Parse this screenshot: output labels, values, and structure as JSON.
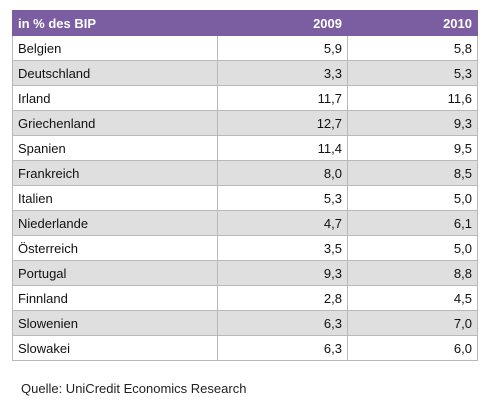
{
  "table": {
    "header": {
      "label": "in % des BIP",
      "years": [
        "2009",
        "2010"
      ]
    },
    "rows": [
      {
        "country": "Belgien",
        "y2009": "5,9",
        "y2010": "5,8"
      },
      {
        "country": "Deutschland",
        "y2009": "3,3",
        "y2010": "5,3"
      },
      {
        "country": "Irland",
        "y2009": "11,7",
        "y2010": "11,6"
      },
      {
        "country": "Griechenland",
        "y2009": "12,7",
        "y2010": "9,3"
      },
      {
        "country": "Spanien",
        "y2009": "11,4",
        "y2010": "9,5"
      },
      {
        "country": "Frankreich",
        "y2009": "8,0",
        "y2010": "8,5"
      },
      {
        "country": "Italien",
        "y2009": "5,3",
        "y2010": "5,0"
      },
      {
        "country": "Niederlande",
        "y2009": "4,7",
        "y2010": "6,1"
      },
      {
        "country": "Österreich",
        "y2009": "3,5",
        "y2010": "5,0"
      },
      {
        "country": "Portugal",
        "y2009": "9,3",
        "y2010": "8,8"
      },
      {
        "country": "Finnland",
        "y2009": "2,8",
        "y2010": "4,5"
      },
      {
        "country": "Slowenien",
        "y2009": "6,3",
        "y2010": "7,0"
      },
      {
        "country": "Slowakei",
        "y2009": "6,3",
        "y2010": "6,0"
      }
    ],
    "header_color": "#7b5ea1",
    "stripe_color": "#dfdfdf"
  },
  "source": "Quelle: UniCredit Economics Research"
}
